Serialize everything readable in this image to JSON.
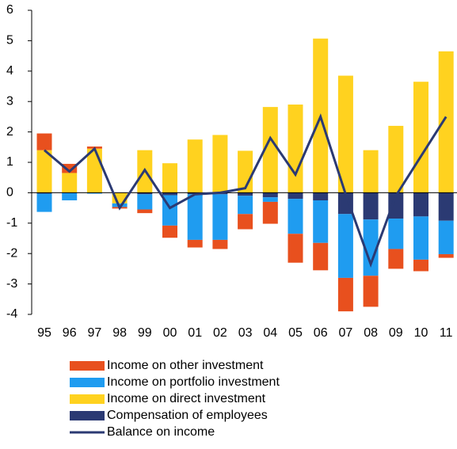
{
  "chart_data": {
    "type": "bar",
    "stacked": true,
    "categories": [
      "95",
      "96",
      "97",
      "98",
      "99",
      "00",
      "01",
      "02",
      "03",
      "04",
      "05",
      "06",
      "07",
      "08",
      "09",
      "10",
      "11"
    ],
    "series": [
      {
        "name": "Income on other investment",
        "color": "#e8501e",
        "values": [
          0.55,
          0.3,
          0.07,
          -0.05,
          -0.12,
          -0.4,
          -0.25,
          -0.3,
          -0.5,
          -0.72,
          -0.95,
          -0.9,
          -1.1,
          -1.02,
          -0.65,
          -0.38,
          -0.12
        ]
      },
      {
        "name": "Income on portfolio investment",
        "color": "#1f9cf0",
        "values": [
          -0.6,
          -0.25,
          -0.03,
          -0.12,
          -0.5,
          -1.0,
          -1.5,
          -1.5,
          -0.6,
          -0.15,
          -1.15,
          -1.4,
          -2.1,
          -1.85,
          -1.0,
          -1.42,
          -1.1
        ]
      },
      {
        "name": "Income on direct investment",
        "color": "#ffd21f",
        "values": [
          1.4,
          0.65,
          1.45,
          -0.35,
          1.4,
          0.97,
          1.75,
          1.9,
          1.38,
          2.82,
          2.9,
          5.07,
          3.85,
          1.4,
          2.2,
          3.65,
          4.65
        ]
      },
      {
        "name": "Compensation of employees",
        "color": "#2b3a73",
        "values": [
          -0.03,
          0,
          0,
          0,
          -0.05,
          -0.08,
          -0.05,
          -0.05,
          -0.1,
          -0.15,
          -0.2,
          -0.25,
          -0.7,
          -0.88,
          -0.85,
          -0.78,
          -0.92
        ]
      },
      {
        "name": "Balance on income",
        "type": "line",
        "color": "#2b3a73",
        "values": [
          1.4,
          0.7,
          1.45,
          -0.5,
          0.75,
          -0.5,
          -0.05,
          0,
          0.15,
          1.8,
          0.6,
          2.5,
          -0.05,
          -2.35,
          -0.1,
          1.2,
          2.5
        ]
      }
    ],
    "ylim": [
      -4,
      6
    ],
    "yticks": [
      -4,
      -3,
      -2,
      -1,
      0,
      1,
      2,
      3,
      4,
      5,
      6
    ],
    "grid": false
  }
}
